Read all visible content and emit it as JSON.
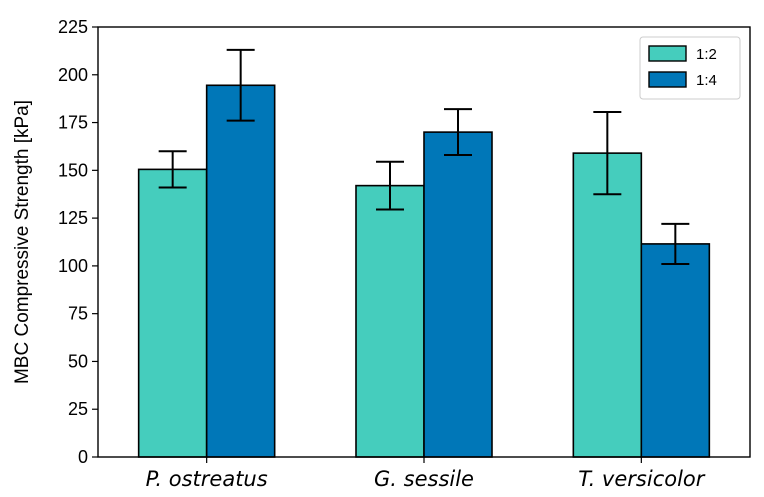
{
  "chart_data": {
    "type": "bar",
    "title": "",
    "xlabel": "",
    "ylabel": "MBC Compressive Strength [kPa]",
    "categories": [
      "P. ostreatus",
      "G. sessile",
      "T. versicolor"
    ],
    "series": [
      {
        "name": "1:2",
        "color": "#45CDBD",
        "values": [
          150.5,
          142,
          159
        ],
        "error": [
          9.5,
          12.5,
          21.5
        ]
      },
      {
        "name": "1:4",
        "color": "#0077B8",
        "values": [
          194.5,
          170,
          111.5
        ],
        "error": [
          18.5,
          12,
          10.5
        ]
      }
    ],
    "ylim": [
      0,
      225
    ],
    "yticks": [
      0,
      25,
      50,
      75,
      100,
      125,
      150,
      175,
      200,
      225
    ],
    "grid": false,
    "legend": "top-right",
    "has_error_bars": true
  }
}
